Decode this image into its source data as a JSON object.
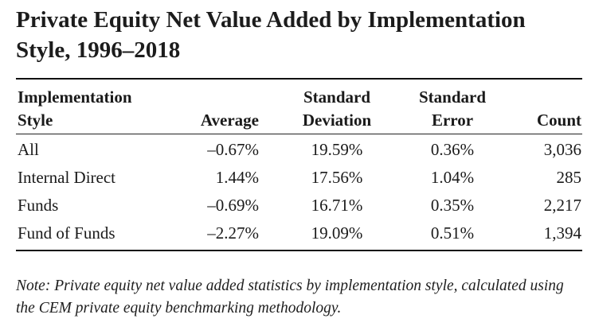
{
  "title": "Private Equity Net Value Added by Implementation Style, 1996–2018",
  "columns": {
    "style": [
      "Implementation",
      "Style"
    ],
    "average": [
      "",
      "Average"
    ],
    "std_dev": [
      "Standard",
      "Deviation"
    ],
    "std_err": [
      "Standard",
      "Error"
    ],
    "count": [
      "",
      "Count"
    ]
  },
  "rows": [
    {
      "style": "All",
      "average": "–0.67%",
      "std_dev": "19.59%",
      "std_err": "0.36%",
      "count": "3,036"
    },
    {
      "style": "Internal Direct",
      "average": "1.44%",
      "std_dev": "17.56%",
      "std_err": "1.04%",
      "count": "285"
    },
    {
      "style": "Funds",
      "average": "–0.69%",
      "std_dev": "16.71%",
      "std_err": "0.35%",
      "count": "2,217"
    },
    {
      "style": "Fund of Funds",
      "average": "–2.27%",
      "std_dev": "19.09%",
      "std_err": "0.51%",
      "count": "1,394"
    }
  ],
  "note": "Note: Private equity net value added statistics by implementation style, calculated using the CEM private equity benchmarking methodology."
}
